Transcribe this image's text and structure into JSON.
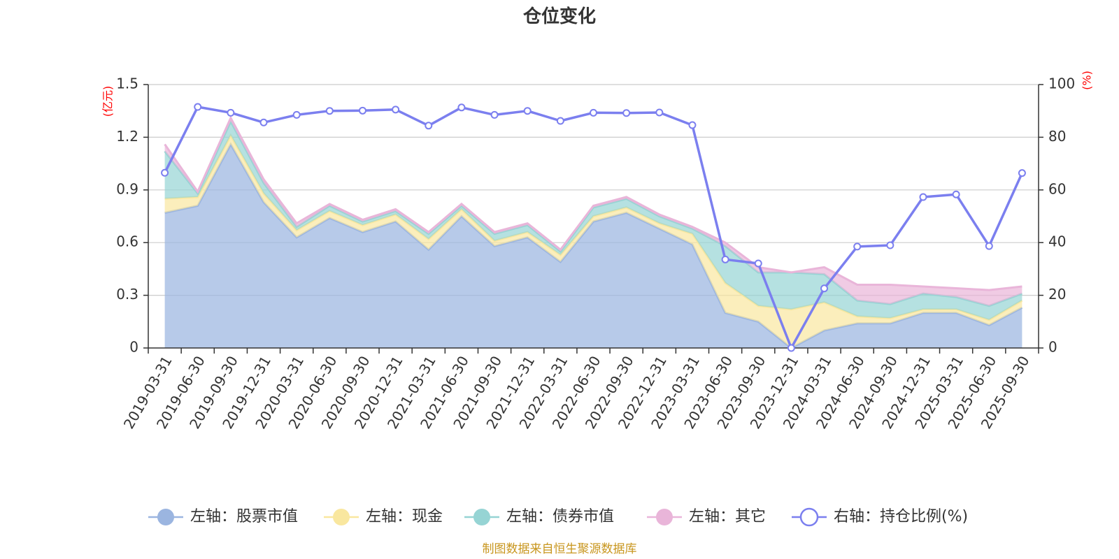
{
  "title": "仓位变化",
  "source": "制图数据来自恒生聚源数据库",
  "left_axis_unit": "(亿元)",
  "right_axis_unit": "(%)",
  "colors": {
    "stock": "#9bb5e0",
    "cash": "#f9e79f",
    "bond": "#96d4d4",
    "other": "#e9b5d9",
    "ratio": "#7b7fef",
    "unit": "#ff0000",
    "source": "#c8961e"
  },
  "chart_data": {
    "type": "area",
    "title": "仓位变化",
    "categories": [
      "2019-03-31",
      "2019-06-30",
      "2019-09-30",
      "2019-12-31",
      "2020-03-31",
      "2020-06-30",
      "2020-09-30",
      "2020-12-31",
      "2021-03-31",
      "2021-06-30",
      "2021-09-30",
      "2021-12-31",
      "2022-03-31",
      "2022-06-30",
      "2022-09-30",
      "2022-12-31",
      "2023-03-31",
      "2023-06-30",
      "2023-09-30",
      "2023-12-31",
      "2024-03-31",
      "2024-06-30",
      "2024-09-30",
      "2024-12-31",
      "2025-03-31",
      "2025-06-30",
      "2025-09-30"
    ],
    "left_axis": {
      "label": "(亿元)",
      "range": [
        0,
        1.5
      ],
      "ticks": [
        "0",
        "0.3",
        "0.6",
        "0.9",
        "1.2",
        "1.5"
      ]
    },
    "right_axis": {
      "label": "(%)",
      "range": [
        0,
        100
      ],
      "ticks": [
        "0",
        "20",
        "40",
        "60",
        "80",
        "100"
      ]
    },
    "stacked_series": [
      {
        "key": "stock",
        "name": "左轴：股票市值",
        "values": [
          0.77,
          0.81,
          1.16,
          0.83,
          0.63,
          0.74,
          0.66,
          0.72,
          0.56,
          0.75,
          0.58,
          0.63,
          0.49,
          0.72,
          0.77,
          0.68,
          0.59,
          0.2,
          0.15,
          0.0,
          0.1,
          0.14,
          0.14,
          0.2,
          0.2,
          0.13,
          0.23
        ]
      },
      {
        "key": "cash",
        "name": "左轴：现金",
        "values": [
          0.08,
          0.05,
          0.05,
          0.05,
          0.04,
          0.04,
          0.04,
          0.04,
          0.06,
          0.04,
          0.03,
          0.03,
          0.04,
          0.03,
          0.03,
          0.03,
          0.06,
          0.17,
          0.09,
          0.22,
          0.16,
          0.04,
          0.03,
          0.02,
          0.02,
          0.03,
          0.04
        ]
      },
      {
        "key": "bond",
        "name": "左轴：债券市值",
        "values": [
          0.27,
          0.02,
          0.08,
          0.06,
          0.02,
          0.03,
          0.02,
          0.02,
          0.03,
          0.02,
          0.04,
          0.04,
          0.02,
          0.05,
          0.05,
          0.04,
          0.03,
          0.21,
          0.19,
          0.21,
          0.16,
          0.09,
          0.08,
          0.09,
          0.07,
          0.08,
          0.04
        ]
      },
      {
        "key": "other",
        "name": "左轴：其它",
        "values": [
          0.04,
          0.01,
          0.02,
          0.02,
          0.02,
          0.01,
          0.01,
          0.01,
          0.01,
          0.01,
          0.01,
          0.01,
          0.01,
          0.01,
          0.01,
          0.01,
          0.01,
          0.02,
          0.03,
          0.0,
          0.04,
          0.09,
          0.11,
          0.04,
          0.05,
          0.09,
          0.04
        ]
      }
    ],
    "line_series": {
      "key": "ratio",
      "name": "右轴：持仓比例(%)",
      "values": [
        66.5,
        91.5,
        89.3,
        85.6,
        88.5,
        90.0,
        90.1,
        90.5,
        84.4,
        91.3,
        88.5,
        90.0,
        86.2,
        89.3,
        89.2,
        89.4,
        84.6,
        33.6,
        32.1,
        0.0,
        22.6,
        38.5,
        39.0,
        57.3,
        58.3,
        38.7,
        66.4
      ]
    },
    "legend_position": "bottom-center"
  },
  "legend": [
    {
      "label": "左轴：股票市值",
      "key": "stock",
      "style": "filled"
    },
    {
      "label": "左轴：现金",
      "key": "cash",
      "style": "filled"
    },
    {
      "label": "左轴：债券市值",
      "key": "bond",
      "style": "filled"
    },
    {
      "label": "左轴：其它",
      "key": "other",
      "style": "filled"
    },
    {
      "label": "右轴：持仓比例(%)",
      "key": "ratio",
      "style": "hollow"
    }
  ]
}
